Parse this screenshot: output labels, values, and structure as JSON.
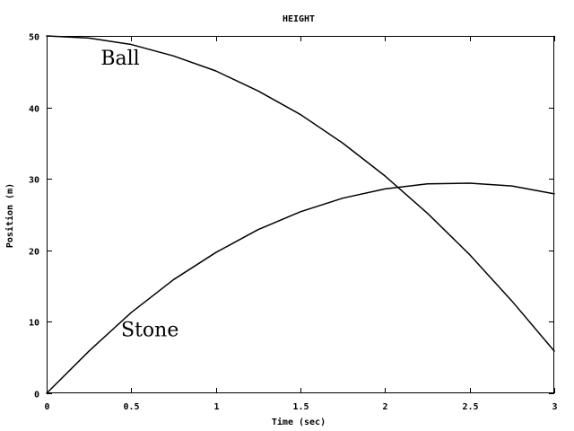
{
  "chart_data": {
    "type": "line",
    "title": "HEIGHT",
    "xlabel": "Time (sec)",
    "ylabel": "Position (m)",
    "xlim": [
      0,
      3
    ],
    "ylim": [
      0,
      50
    ],
    "xticks": [
      "0",
      "0.5",
      "1",
      "1.5",
      "2",
      "2.5",
      "3"
    ],
    "xtick_values": [
      0,
      0.5,
      1,
      1.5,
      2,
      2.5,
      3
    ],
    "yticks": [
      "0",
      "10",
      "20",
      "30",
      "40",
      "50"
    ],
    "ytick_values": [
      0,
      10,
      20,
      30,
      40,
      50
    ],
    "grid": false,
    "legend": "none",
    "x": [
      0,
      0.25,
      0.5,
      0.75,
      1,
      1.25,
      1.5,
      1.75,
      2,
      2.25,
      2.5,
      2.75,
      3
    ],
    "series": [
      {
        "values": [
          50,
          49.7,
          48.8,
          47.2,
          45.1,
          42.3,
          39,
          35,
          30.4,
          25.2,
          19.4,
          12.9,
          5.9
        ]
      },
      {
        "values": [
          0,
          5.9,
          11.3,
          15.9,
          19.7,
          22.9,
          25.4,
          27.3,
          28.6,
          29.3,
          29.4,
          29,
          27.9
        ]
      }
    ],
    "annotations": [
      {
        "text": "Ball",
        "x": 0.32,
        "y": 46
      },
      {
        "text": "Stone",
        "x": 0.44,
        "y": 8
      }
    ]
  }
}
